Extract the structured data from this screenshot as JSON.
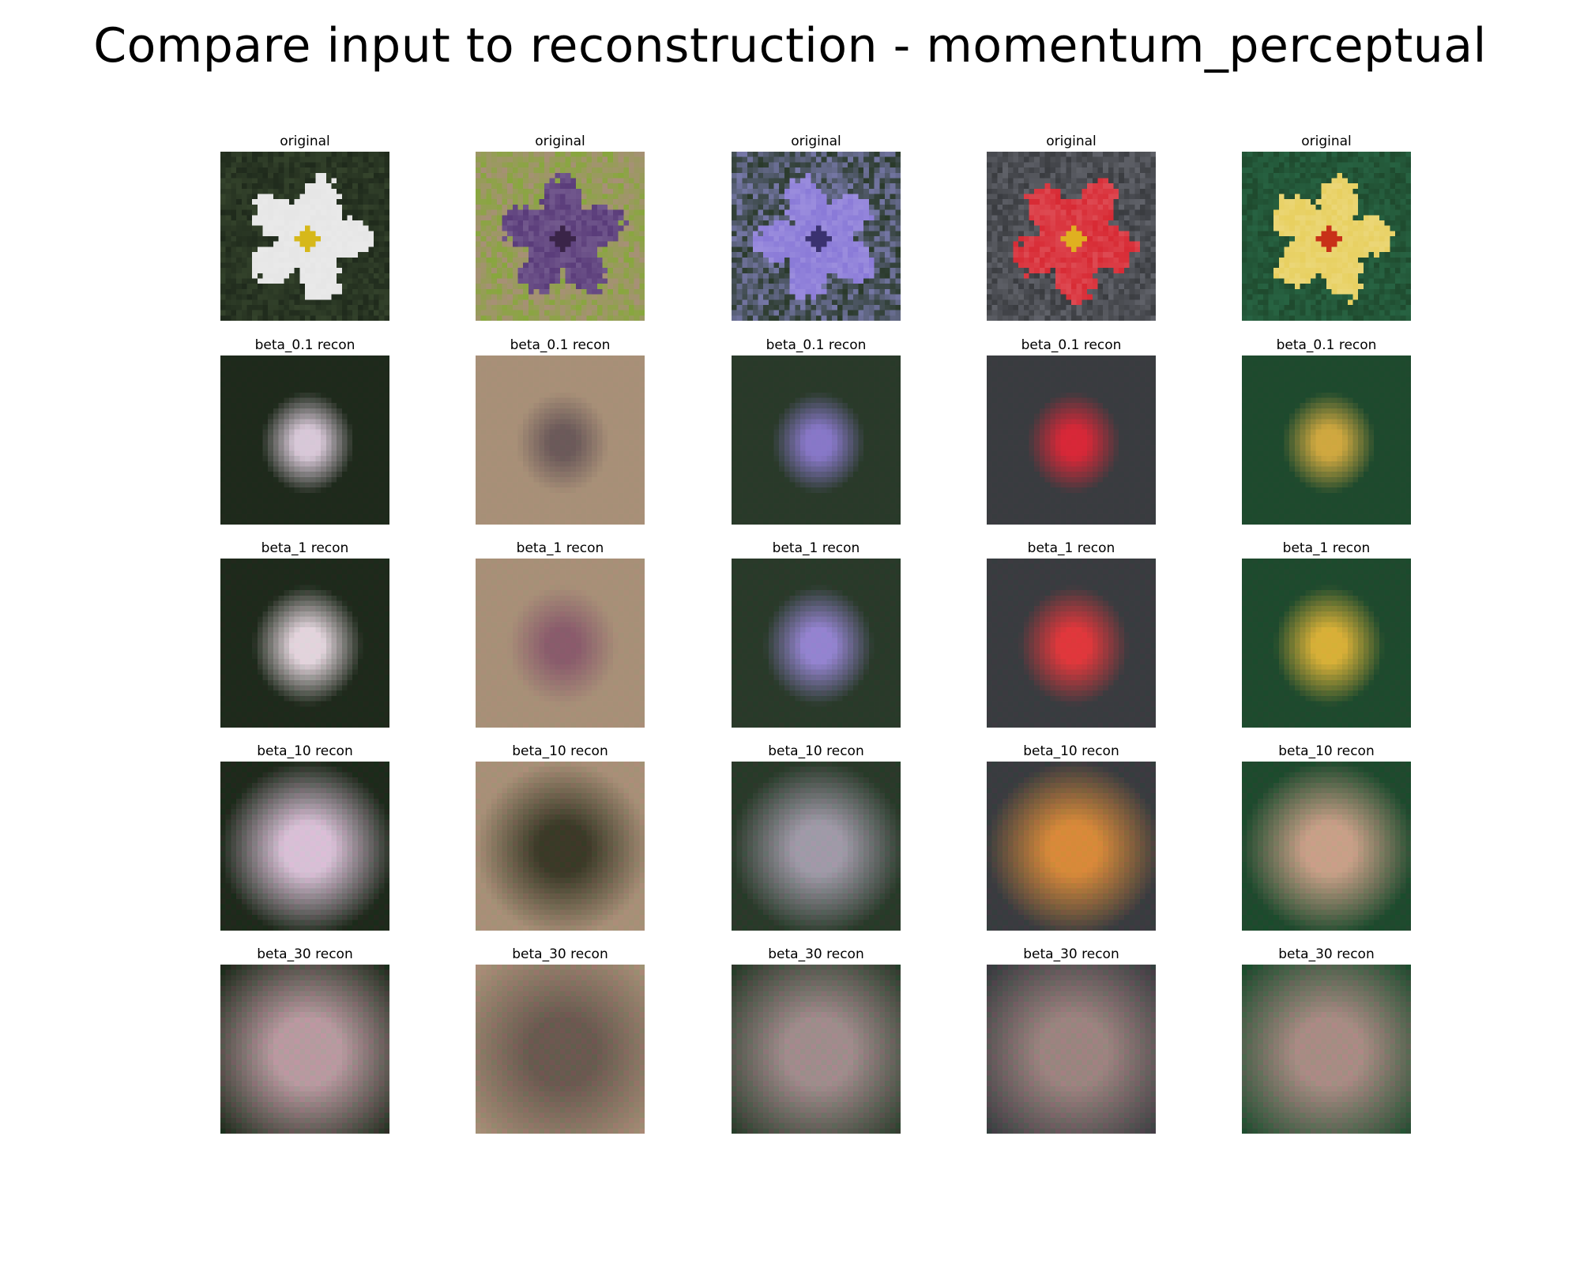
{
  "figure": {
    "title": "Compare input to reconstruction - momentum_perceptual"
  },
  "row_labels": [
    "original",
    "beta_0.1 recon",
    "beta_1 recon",
    "beta_10 recon",
    "beta_30 recon"
  ],
  "columns": [
    {
      "id": "white-flower",
      "bg": "#1f2a1c",
      "bg2": "#3a4a30",
      "flower": "#e6e6e6",
      "center": "#d6b81a",
      "recon_colors": {
        "beta_0.1": "#d8c8d8",
        "beta_1": "#e2d4dc",
        "beta_10": "#d8c0d6",
        "beta_30": "#b89aa0"
      }
    },
    {
      "id": "purple-sprig",
      "bg": "#a89078",
      "bg2": "#7fae2e",
      "flower": "#5a3c7a",
      "center": "#3a2448",
      "recon_colors": {
        "beta_0.1": "#6c5a5a",
        "beta_1": "#8a5c6c",
        "beta_10": "#3c3a28",
        "beta_30": "#6a5a50"
      }
    },
    {
      "id": "purple-cluster",
      "bg": "#2a3a2a",
      "bg2": "#8a88c8",
      "flower": "#8a7ad8",
      "center": "#3a3270",
      "recon_colors": {
        "beta_0.1": "#8878c8",
        "beta_1": "#9484d0",
        "beta_10": "#a09aa8",
        "beta_30": "#a08c8c"
      }
    },
    {
      "id": "red-flower",
      "bg": "#3a3c40",
      "bg2": "#6a6c74",
      "flower": "#d82a34",
      "center": "#e0b020",
      "recon_colors": {
        "beta_0.1": "#d82838",
        "beta_1": "#e0383c",
        "beta_10": "#d88a3a",
        "beta_30": "#9c8480"
      }
    },
    {
      "id": "yellow-red-flower",
      "bg": "#1f4a2e",
      "bg2": "#2a6a48",
      "flower": "#e8d060",
      "center": "#c83018",
      "recon_colors": {
        "beta_0.1": "#d0a840",
        "beta_1": "#d8b038",
        "beta_10": "#c8a088",
        "beta_30": "#a88c84"
      }
    }
  ]
}
